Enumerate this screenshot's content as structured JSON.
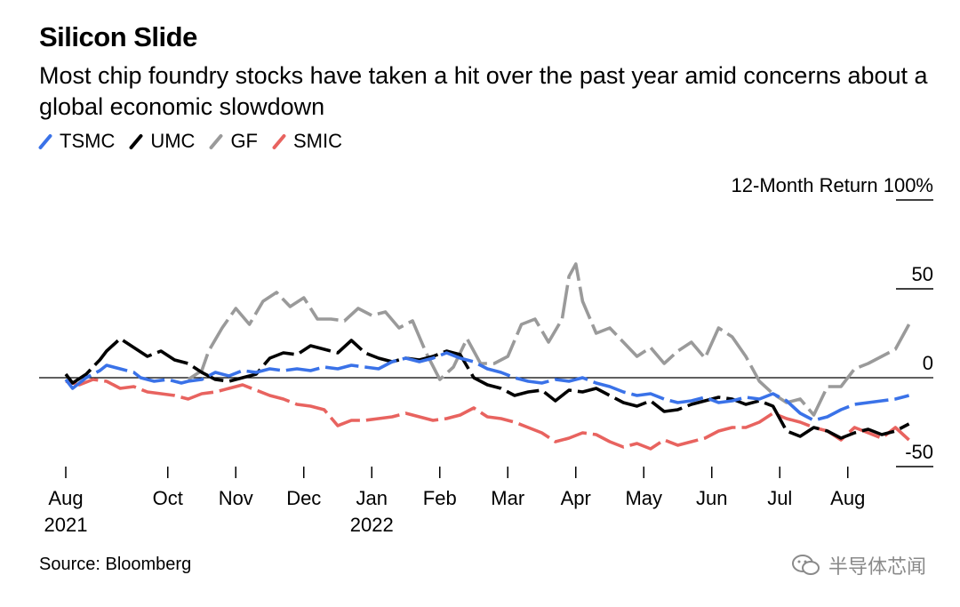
{
  "chart_data": {
    "type": "line",
    "title": "Silicon Slide",
    "subtitle": "Most chip foundry stocks have taken a hit over the past year amid concerns about a global economic slowdown",
    "ylabel": "12-Month Return",
    "ylim": [
      -55,
      100
    ],
    "yticks": [
      {
        "value": 100,
        "label": "12-Month Return 100%"
      },
      {
        "value": 50,
        "label": "50"
      },
      {
        "value": 0,
        "label": "0"
      },
      {
        "value": -50,
        "label": "-50"
      }
    ],
    "xlim": [
      0,
      12.7
    ],
    "xticks": [
      {
        "pos": 0.0,
        "label": "Aug",
        "sublabel": "2021"
      },
      {
        "pos": 1.5,
        "label": "Oct"
      },
      {
        "pos": 2.5,
        "label": "Nov"
      },
      {
        "pos": 3.5,
        "label": "Dec"
      },
      {
        "pos": 4.5,
        "label": "Jan",
        "sublabel": "2022"
      },
      {
        "pos": 5.5,
        "label": "Feb"
      },
      {
        "pos": 6.5,
        "label": "Mar"
      },
      {
        "pos": 7.5,
        "label": "Apr"
      },
      {
        "pos": 8.5,
        "label": "May"
      },
      {
        "pos": 9.5,
        "label": "Jun"
      },
      {
        "pos": 10.5,
        "label": "Jul"
      },
      {
        "pos": 11.5,
        "label": "Aug"
      }
    ],
    "series": [
      {
        "name": "TSMC",
        "color": "#3a72e8",
        "x": [
          0,
          0.1,
          0.3,
          0.5,
          0.6,
          0.8,
          1.0,
          1.1,
          1.3,
          1.5,
          1.7,
          1.8,
          2.0,
          2.2,
          2.4,
          2.6,
          2.8,
          3.0,
          3.2,
          3.4,
          3.6,
          3.8,
          4.0,
          4.2,
          4.4,
          4.6,
          4.8,
          5.0,
          5.2,
          5.4,
          5.6,
          5.8,
          6.0,
          6.2,
          6.4,
          6.6,
          6.8,
          7.0,
          7.2,
          7.4,
          7.6,
          7.8,
          8.0,
          8.2,
          8.4,
          8.6,
          8.8,
          9.0,
          9.2,
          9.4,
          9.6,
          9.8,
          10.0,
          10.2,
          10.4,
          10.6,
          10.8,
          11.0,
          11.2,
          11.4,
          11.6,
          11.8,
          12.0,
          12.2,
          12.4
        ],
        "y": [
          -1,
          -6,
          0,
          4,
          7,
          5,
          3,
          0,
          -2,
          -1,
          -3,
          -2,
          -1,
          3,
          1,
          4,
          3,
          5,
          4,
          5,
          4,
          6,
          5,
          7,
          6,
          5,
          9,
          11,
          9,
          11,
          14,
          11,
          9,
          5,
          3,
          0,
          -2,
          -3,
          -1,
          -2,
          0,
          -3,
          -5,
          -8,
          -10,
          -9,
          -12,
          -14,
          -13,
          -11,
          -14,
          -13,
          -11,
          -12,
          -9,
          -13,
          -20,
          -24,
          -22,
          -18,
          -15,
          -14,
          -13,
          -12,
          -10
        ]
      },
      {
        "name": "UMC",
        "color": "#000000",
        "x": [
          0,
          0.1,
          0.3,
          0.4,
          0.5,
          0.6,
          0.8,
          1.0,
          1.2,
          1.4,
          1.6,
          1.8,
          2.0,
          2.2,
          2.4,
          2.6,
          2.8,
          3.0,
          3.2,
          3.4,
          3.6,
          3.8,
          4.0,
          4.2,
          4.4,
          4.6,
          4.8,
          5.0,
          5.2,
          5.4,
          5.6,
          5.8,
          6.0,
          6.2,
          6.4,
          6.6,
          6.8,
          7.0,
          7.2,
          7.4,
          7.6,
          7.8,
          8.0,
          8.2,
          8.4,
          8.6,
          8.8,
          9.0,
          9.2,
          9.4,
          9.6,
          9.8,
          10.0,
          10.2,
          10.4,
          10.6,
          10.8,
          11.0,
          11.2,
          11.4,
          11.6,
          11.8,
          12.0,
          12.2,
          12.4
        ],
        "y": [
          2,
          -3,
          2,
          6,
          10,
          15,
          22,
          17,
          12,
          15,
          10,
          8,
          3,
          -1,
          -2,
          0,
          2,
          11,
          14,
          13,
          18,
          16,
          14,
          21,
          14,
          11,
          9,
          11,
          10,
          12,
          15,
          13,
          0,
          -4,
          -6,
          -10,
          -8,
          -7,
          -13,
          -7,
          -8,
          -6,
          -10,
          -14,
          -16,
          -13,
          -19,
          -18,
          -15,
          -13,
          -11,
          -12,
          -15,
          -13,
          -16,
          -30,
          -33,
          -28,
          -30,
          -34,
          -31,
          -29,
          -32,
          -30,
          -26
        ]
      },
      {
        "name": "GF",
        "color": "#9a9a9a",
        "x": [
          1.8,
          2.0,
          2.1,
          2.3,
          2.5,
          2.7,
          2.9,
          3.1,
          3.3,
          3.5,
          3.7,
          3.9,
          4.1,
          4.3,
          4.5,
          4.7,
          4.9,
          5.1,
          5.3,
          5.5,
          5.7,
          5.9,
          6.1,
          6.3,
          6.5,
          6.7,
          6.9,
          7.1,
          7.3,
          7.4,
          7.5,
          7.6,
          7.8,
          8.0,
          8.2,
          8.4,
          8.6,
          8.8,
          9.0,
          9.2,
          9.4,
          9.6,
          9.8,
          10.0,
          10.2,
          10.4,
          10.6,
          10.8,
          11.0,
          11.2,
          11.4,
          11.6,
          11.8,
          12.0,
          12.2,
          12.4
        ],
        "y": [
          -1,
          4,
          15,
          28,
          39,
          30,
          43,
          48,
          40,
          45,
          33,
          33,
          32,
          39,
          35,
          37,
          28,
          32,
          14,
          -1,
          6,
          22,
          8,
          8,
          12,
          30,
          33,
          20,
          33,
          57,
          64,
          43,
          25,
          28,
          20,
          12,
          17,
          8,
          15,
          20,
          11,
          28,
          23,
          12,
          -2,
          -9,
          -14,
          -12,
          -21,
          -5,
          -5,
          5,
          8,
          12,
          16,
          30
        ]
      },
      {
        "name": "SMIC",
        "color": "#e8635f",
        "x": [
          0,
          0.2,
          0.4,
          0.6,
          0.8,
          1.0,
          1.2,
          1.4,
          1.6,
          1.8,
          2.0,
          2.2,
          2.4,
          2.6,
          2.8,
          3.0,
          3.2,
          3.4,
          3.6,
          3.8,
          4.0,
          4.2,
          4.4,
          4.6,
          4.8,
          5.0,
          5.2,
          5.4,
          5.6,
          5.8,
          6.0,
          6.2,
          6.4,
          6.6,
          6.8,
          7.0,
          7.2,
          7.4,
          7.6,
          7.8,
          8.0,
          8.2,
          8.4,
          8.6,
          8.8,
          9.0,
          9.2,
          9.4,
          9.6,
          9.8,
          10.0,
          10.2,
          10.4,
          10.6,
          10.8,
          11.0,
          11.2,
          11.4,
          11.6,
          11.8,
          12.0,
          12.2,
          12.4
        ],
        "y": [
          -2,
          -4,
          -1,
          -2,
          -6,
          -5,
          -8,
          -9,
          -10,
          -12,
          -9,
          -8,
          -6,
          -4,
          -7,
          -10,
          -12,
          -15,
          -16,
          -18,
          -27,
          -24,
          -24,
          -23,
          -22,
          -20,
          -22,
          -24,
          -23,
          -21,
          -17,
          -22,
          -23,
          -25,
          -28,
          -31,
          -36,
          -34,
          -31,
          -32,
          -36,
          -39,
          -37,
          -40,
          -35,
          -38,
          -36,
          -34,
          -30,
          -28,
          -28,
          -25,
          -20,
          -23,
          -25,
          -28,
          -30,
          -35,
          -28,
          -31,
          -34,
          -28,
          -35
        ]
      }
    ]
  },
  "footer": {
    "source": "Source: Bloomberg",
    "watermark": "半导体芯闻"
  }
}
